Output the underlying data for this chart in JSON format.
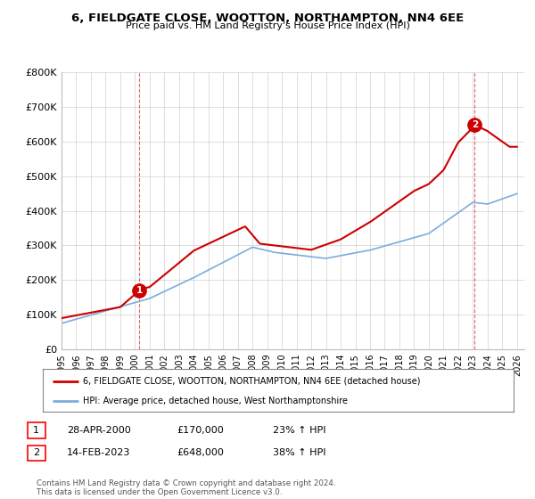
{
  "title": "6, FIELDGATE CLOSE, WOOTTON, NORTHAMPTON, NN4 6EE",
  "subtitle": "Price paid vs. HM Land Registry's House Price Index (HPI)",
  "legend_line1": "6, FIELDGATE CLOSE, WOOTTON, NORTHAMPTON, NN4 6EE (detached house)",
  "legend_line2": "HPI: Average price, detached house, West Northamptonshire",
  "annotation1": {
    "num": "1",
    "date": "28-APR-2000",
    "price": "£170,000",
    "pct": "23% ↑ HPI"
  },
  "annotation2": {
    "num": "2",
    "date": "14-FEB-2023",
    "price": "£648,000",
    "pct": "38% ↑ HPI"
  },
  "footer": "Contains HM Land Registry data © Crown copyright and database right 2024.\nThis data is licensed under the Open Government Licence v3.0.",
  "hpi_color": "#7aaddc",
  "price_color": "#cc0000",
  "marker1_x": 2000.3,
  "marker1_y": 170000,
  "marker2_x": 2023.12,
  "marker2_y": 648000,
  "ylim": [
    0,
    800000
  ],
  "xlim_left": 1995.0,
  "xlim_right": 2026.5,
  "yticks": [
    0,
    100000,
    200000,
    300000,
    400000,
    500000,
    600000,
    700000,
    800000
  ],
  "ytick_labels": [
    "£0",
    "£100K",
    "£200K",
    "£300K",
    "£400K",
    "£500K",
    "£600K",
    "£700K",
    "£800K"
  ],
  "xtick_years": [
    1995,
    1996,
    1997,
    1998,
    1999,
    2000,
    2001,
    2002,
    2003,
    2004,
    2005,
    2006,
    2007,
    2008,
    2009,
    2010,
    2011,
    2012,
    2013,
    2014,
    2015,
    2016,
    2017,
    2018,
    2019,
    2020,
    2021,
    2022,
    2023,
    2024,
    2025,
    2026
  ],
  "fig_width": 6.0,
  "fig_height": 5.6,
  "dpi": 100
}
